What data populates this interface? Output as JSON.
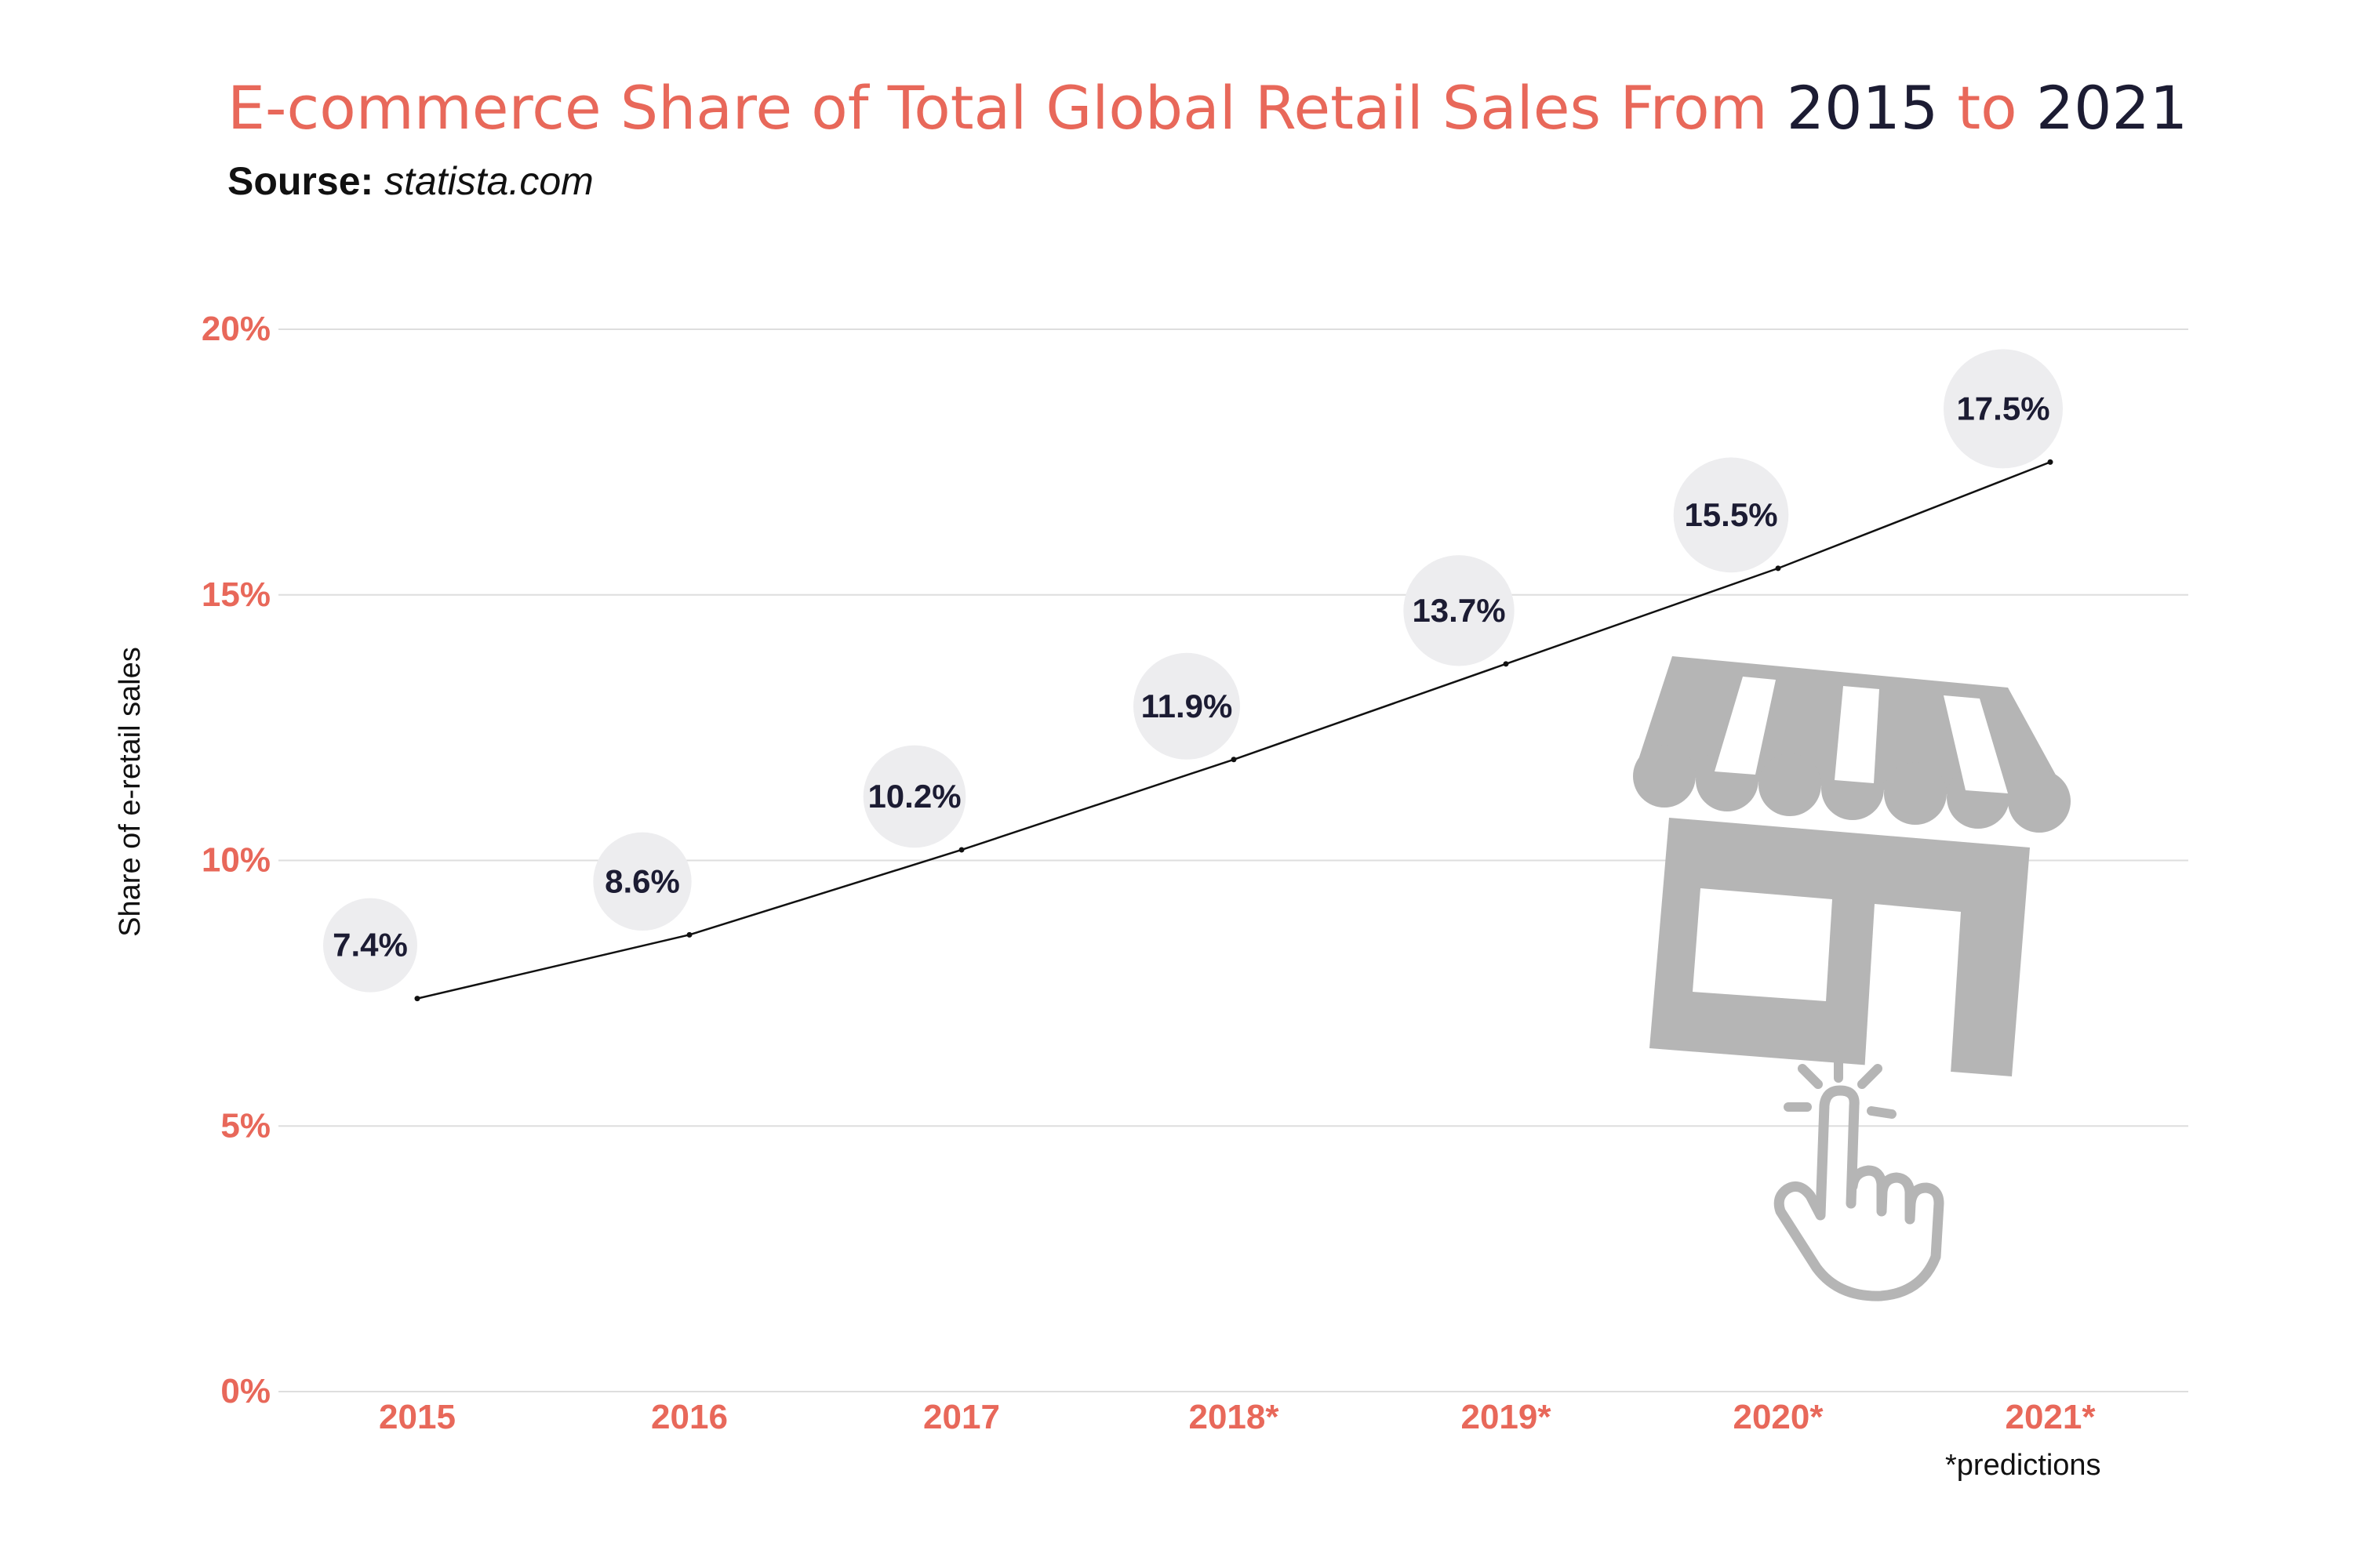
{
  "title": {
    "part1": "E-commerce Share of Total Global Retail Sales From ",
    "part2": "2015",
    "part3": " to ",
    "part4": "2021"
  },
  "subtitle": {
    "label": "Sourse:",
    "value": "statista.com"
  },
  "footnote": "*predictions",
  "colors": {
    "accent": "#e8685a",
    "dark": "#1c1c33",
    "bubble": "#ededef",
    "icon": "#b5b5b5"
  },
  "illustration": {
    "icon": "storefront-with-pointing-hand-icon"
  },
  "chart_data": {
    "type": "line",
    "title": "",
    "xlabel": "",
    "ylabel": "Share of e-retail sales",
    "categories": [
      "2015",
      "2016",
      "2017",
      "2018*",
      "2019*",
      "2020*",
      "2021*"
    ],
    "series": [
      {
        "name": "",
        "values": [
          7.4,
          8.6,
          10.2,
          11.9,
          13.7,
          15.5,
          17.5
        ]
      }
    ],
    "data_labels": [
      "7.4%",
      "8.6%",
      "10.2%",
      "11.9%",
      "13.7%",
      "15.5%",
      "17.5%"
    ],
    "ylim": [
      0,
      20
    ],
    "yticks": [
      0,
      5,
      10,
      15,
      20
    ],
    "ytick_labels": [
      "0%",
      "5%",
      "10%",
      "15%",
      "20%"
    ],
    "grid": true,
    "legend": "none"
  }
}
